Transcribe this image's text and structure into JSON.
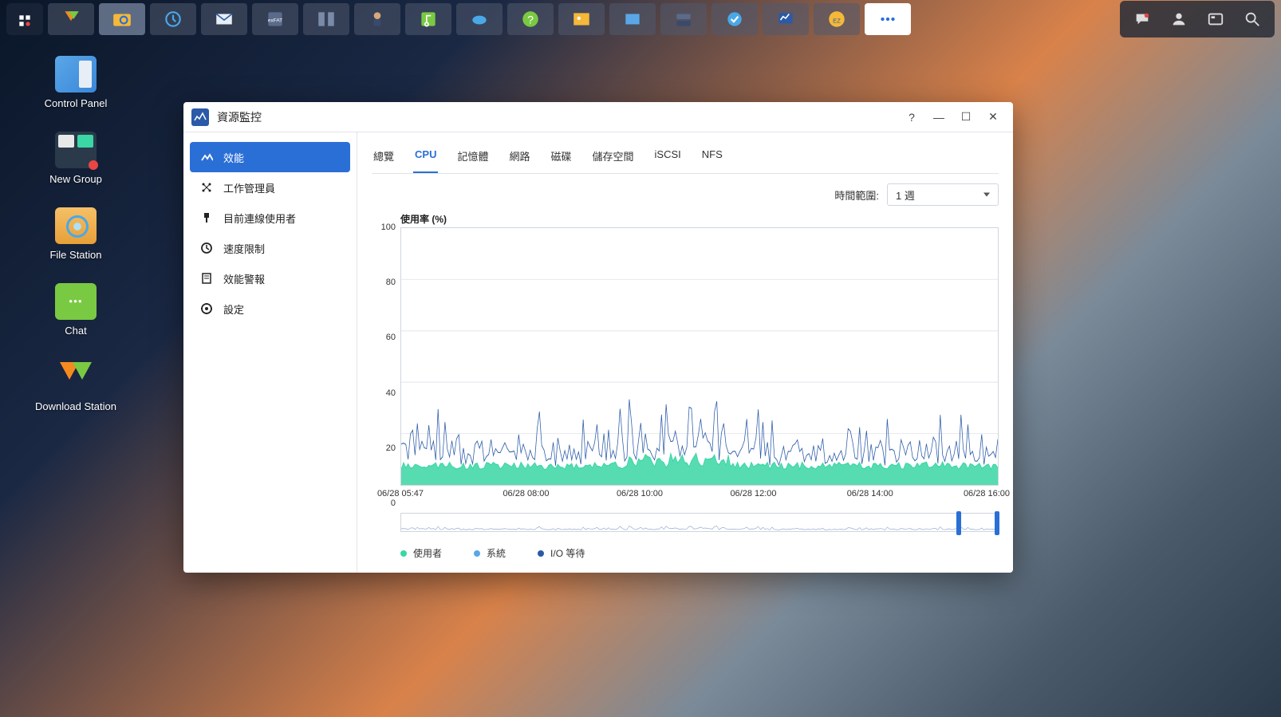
{
  "taskbar": {
    "icons": [
      "main",
      "download",
      "search-folder",
      "backup",
      "mail",
      "exfat",
      "vm",
      "audio",
      "music",
      "cloud",
      "help",
      "photo",
      "sync",
      "storage",
      "security",
      "monitor",
      "ez",
      "more"
    ]
  },
  "desktop": {
    "items": [
      {
        "label": "Control Panel",
        "icon": "controlpanel"
      },
      {
        "label": "New Group",
        "icon": "newgroup"
      },
      {
        "label": "File Station",
        "icon": "filestation"
      },
      {
        "label": "Chat",
        "icon": "chat"
      },
      {
        "label": "Download Station",
        "icon": "download"
      }
    ]
  },
  "window": {
    "title": "資源監控",
    "sidebar": [
      {
        "label": "效能",
        "active": true
      },
      {
        "label": "工作管理員",
        "active": false
      },
      {
        "label": "目前連線使用者",
        "active": false
      },
      {
        "label": "速度限制",
        "active": false
      },
      {
        "label": "效能警報",
        "active": false
      },
      {
        "label": "設定",
        "active": false
      }
    ],
    "tabs": [
      {
        "label": "總覽",
        "active": false
      },
      {
        "label": "CPU",
        "active": true
      },
      {
        "label": "記憶體",
        "active": false
      },
      {
        "label": "網路",
        "active": false
      },
      {
        "label": "磁碟",
        "active": false
      },
      {
        "label": "儲存空間",
        "active": false
      },
      {
        "label": "iSCSI",
        "active": false
      },
      {
        "label": "NFS",
        "active": false
      }
    ],
    "timeframe_label": "時間範圍:",
    "timeframe_value": "1 週"
  },
  "chart": {
    "title": "使用率 (%)",
    "type": "area-line",
    "ylim": [
      0,
      100
    ],
    "yticks": [
      0,
      20,
      40,
      60,
      80,
      100
    ],
    "xticks": [
      "06/28 05:47",
      "06/28 08:00",
      "06/28 10:00",
      "06/28 12:00",
      "06/28 14:00",
      "06/28 16:00"
    ],
    "xtick_pos": [
      0,
      0.21,
      0.4,
      0.59,
      0.785,
      0.98
    ],
    "colors": {
      "user": "#3ad6a5",
      "system": "#5aa7e8",
      "iowait": "#2a5aa8",
      "grid": "#e6e9ee",
      "border": "#cfd5de",
      "background": "#ffffff"
    },
    "series": {
      "user_base": 6,
      "user_jitter": 3,
      "system_base": 10,
      "system_jitter": 6,
      "spike_region": [
        0.38,
        0.55
      ],
      "spike_peak": 34
    },
    "legend": [
      {
        "label": "使用者",
        "color": "#3ad6a5"
      },
      {
        "label": "系統",
        "color": "#5aa7e8"
      },
      {
        "label": "I/O 等待",
        "color": "#2a5aa8"
      }
    ],
    "overview_handles": [
      0.935,
      0.998
    ]
  }
}
